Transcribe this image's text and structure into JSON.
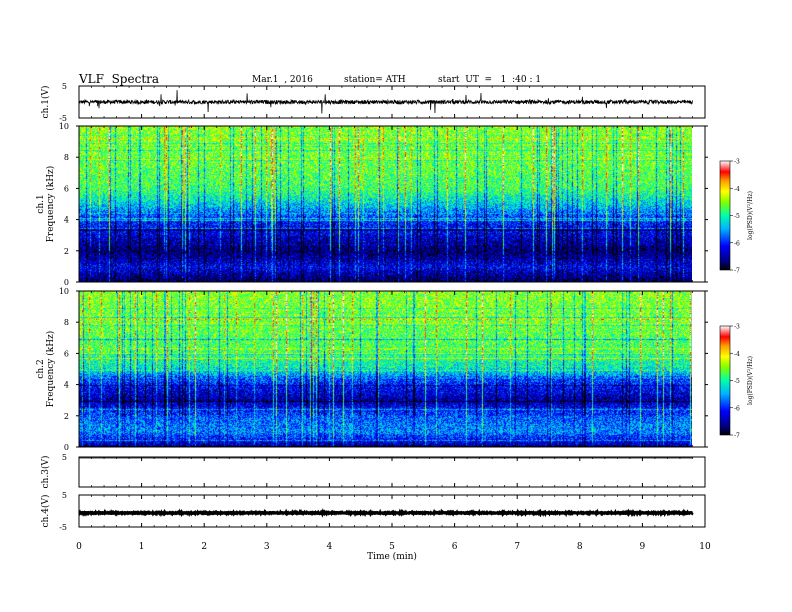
{
  "header": {
    "title": "VLF  Spectra",
    "date": "Mar.1  , 2016",
    "station": "station= ATH",
    "start": "start  UT  =   1  :40 : 1"
  },
  "chart_data": [
    {
      "type": "line",
      "panel": "ch1-waveform",
      "ylabel": "ch.1(V)",
      "yticks": [
        "5",
        "-5"
      ],
      "ylim": [
        -5,
        5
      ],
      "xlim": [
        0,
        10
      ],
      "data_end_min": 9.8,
      "mean": 0,
      "noise_amplitude": 0.6,
      "impulsive_spikes": true
    },
    {
      "type": "heatmap",
      "panel": "ch1-spectrogram",
      "ylabel": "ch.1\nFrequency  (kHz)",
      "ylabel_lines": [
        "ch.1",
        "Frequency  (kHz)"
      ],
      "ylim": [
        0,
        10
      ],
      "yticks": [
        "0",
        "2",
        "4",
        "6",
        "8",
        "10"
      ],
      "xlim": [
        0,
        10
      ],
      "data_end_min": 9.8,
      "colorbar": {
        "label": "log(PSD)(V²/Hz)",
        "range": [
          -7,
          -3
        ],
        "ticks": [
          "-3",
          "-4",
          "-5",
          "-6",
          "-7"
        ]
      },
      "spectral_profile_khz": [
        {
          "f": 0.0,
          "level": -6.8
        },
        {
          "f": 1.0,
          "level": -6.2
        },
        {
          "f": 2.0,
          "level": -6.7
        },
        {
          "f": 3.0,
          "level": -6.3
        },
        {
          "f": 4.0,
          "level": -6.0
        },
        {
          "f": 5.0,
          "level": -5.3
        },
        {
          "f": 6.0,
          "level": -4.8
        },
        {
          "f": 8.0,
          "level": -4.6
        },
        {
          "f": 10.0,
          "level": -4.5
        }
      ]
    },
    {
      "type": "heatmap",
      "panel": "ch2-spectrogram",
      "ylabel": "ch.2\nFrequency  (kHz)",
      "ylabel_lines": [
        "ch.2",
        "Frequency  (kHz)"
      ],
      "ylim": [
        0,
        10
      ],
      "yticks": [
        "0",
        "2",
        "4",
        "6",
        "8",
        "10"
      ],
      "xlim": [
        0,
        10
      ],
      "data_end_min": 9.8,
      "colorbar": {
        "label": "log(PSD)(V²/Hz)",
        "range": [
          -7,
          -3
        ],
        "ticks": [
          "-3",
          "-4",
          "-5",
          "-6",
          "-7"
        ]
      },
      "spectral_profile_khz": [
        {
          "f": 0.0,
          "level": -6.6
        },
        {
          "f": 1.0,
          "level": -5.6
        },
        {
          "f": 2.0,
          "level": -5.8
        },
        {
          "f": 3.0,
          "level": -6.5
        },
        {
          "f": 4.0,
          "level": -6.1
        },
        {
          "f": 5.0,
          "level": -5.2
        },
        {
          "f": 6.0,
          "level": -4.8
        },
        {
          "f": 8.0,
          "level": -4.6
        },
        {
          "f": 10.0,
          "level": -4.5
        }
      ]
    },
    {
      "type": "line",
      "panel": "ch3-waveform",
      "ylabel": "ch.3(V)",
      "yticks": [
        "5"
      ],
      "ylim": [
        -5,
        5
      ],
      "xlim": [
        0,
        10
      ],
      "data_end_min": 9.8,
      "mean": 5,
      "noise_amplitude": 0
    },
    {
      "type": "line",
      "panel": "ch4-waveform",
      "ylabel": "ch.4(V)",
      "yticks": [
        "5",
        "-5"
      ],
      "ylim": [
        -5,
        5
      ],
      "xlim": [
        0,
        10
      ],
      "data_end_min": 9.8,
      "mean": -0.6,
      "noise_amplitude": 0.15
    }
  ],
  "x_axis": {
    "label": "Time  (min)",
    "ticks": [
      "0",
      "1",
      "2",
      "3",
      "4",
      "5",
      "6",
      "7",
      "8",
      "9",
      "10"
    ],
    "range": [
      0,
      10
    ]
  }
}
